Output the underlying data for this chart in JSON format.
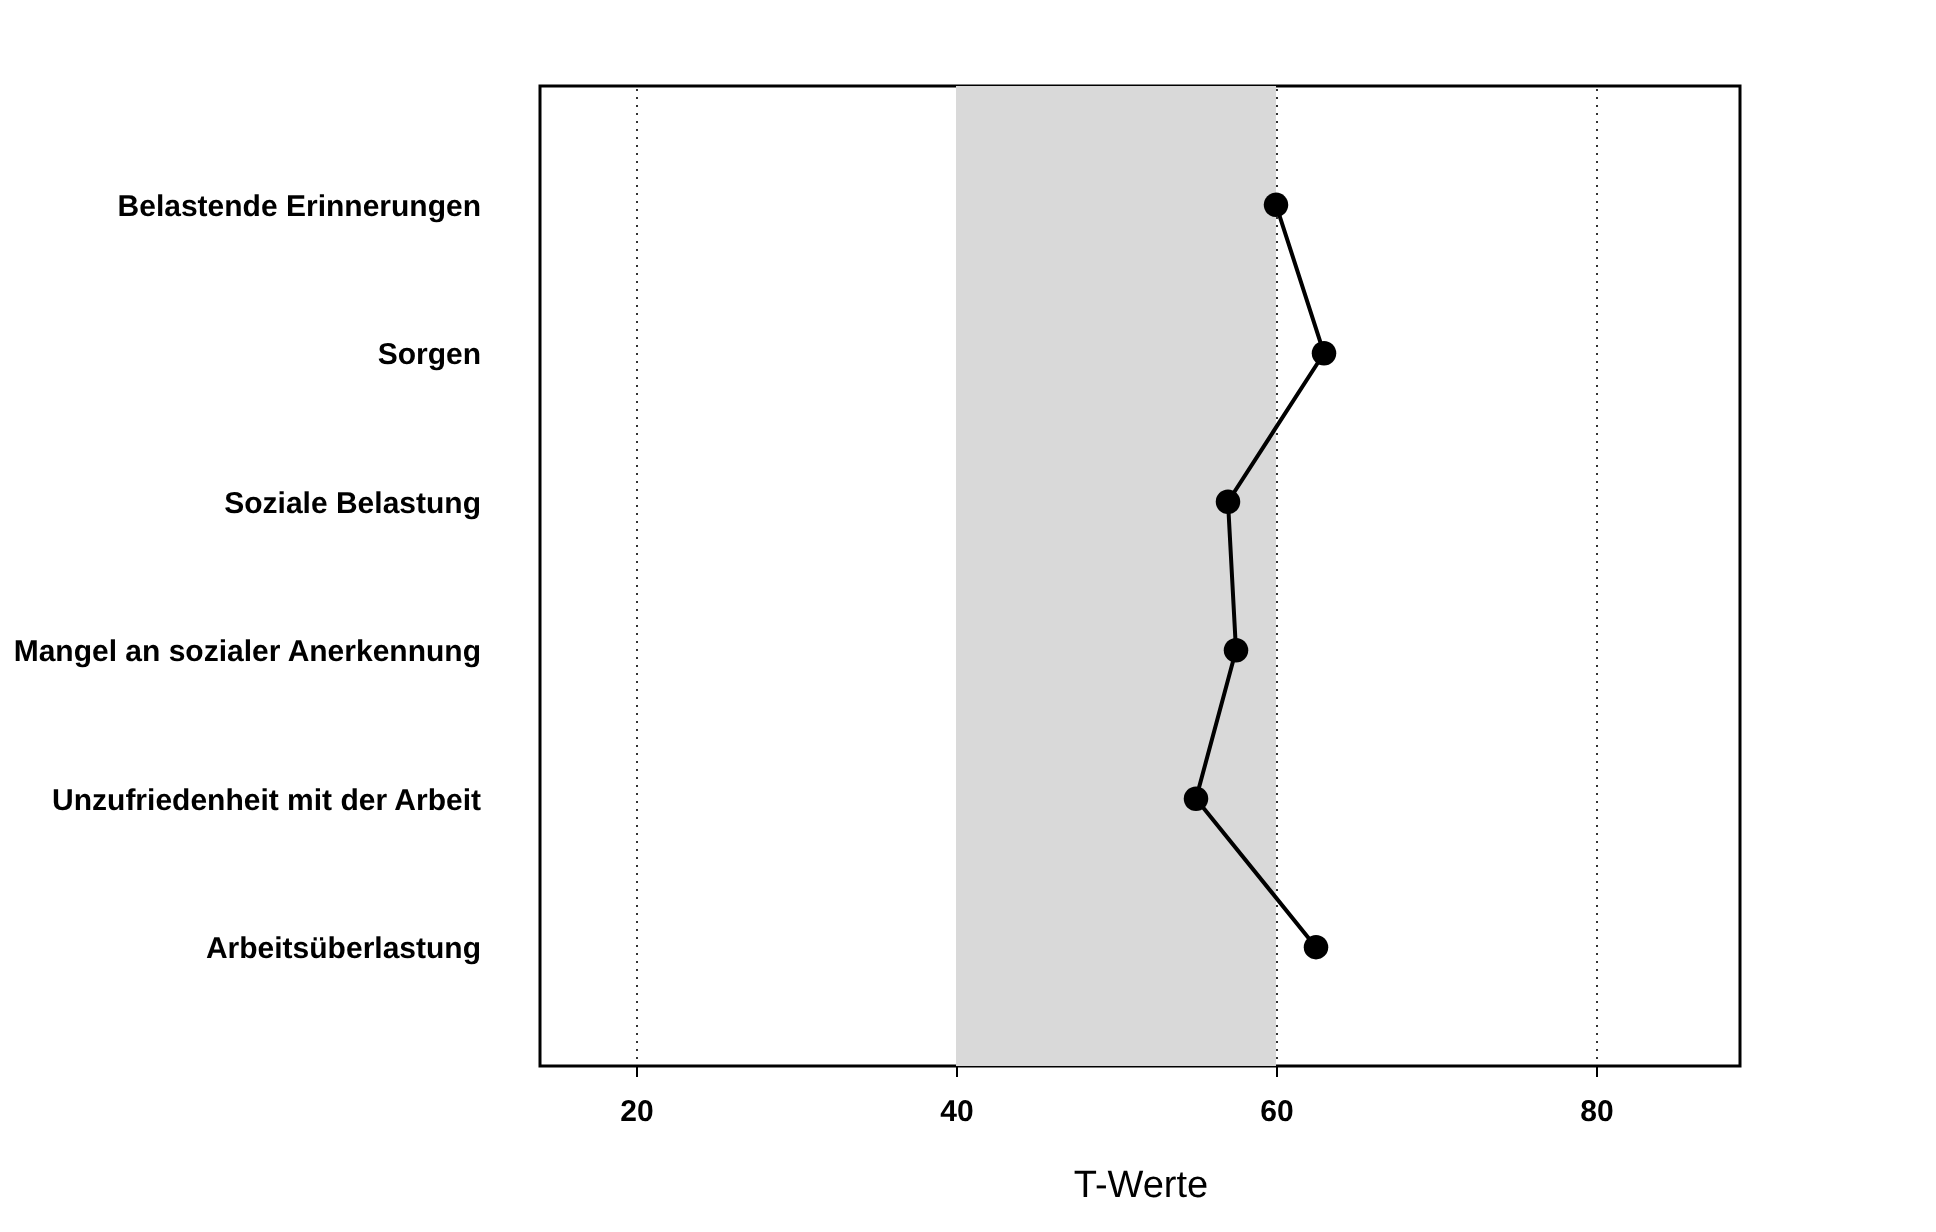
{
  "chart_data": {
    "type": "line",
    "orientation": "horizontal",
    "xlabel": "T-Werte",
    "categories": [
      "Belastende Erinnerungen",
      "Sorgen",
      "Soziale Belastung",
      "Mangel an sozialer Anerkennung",
      "Unzufriedenheit mit der Arbeit",
      "Arbeitsüberlastung"
    ],
    "series": [
      {
        "color": "#000000",
        "values": [
          60,
          63,
          57,
          57.5,
          55,
          62.5
        ]
      }
    ],
    "xlim": [
      14,
      89
    ],
    "xticks": [
      20,
      40,
      60,
      80
    ],
    "grid": "x",
    "marker": "circle",
    "line_style": "solid",
    "bands": [
      {
        "axis": "x",
        "from": 40,
        "to": 60,
        "color": "#d9d9d9"
      }
    ]
  }
}
